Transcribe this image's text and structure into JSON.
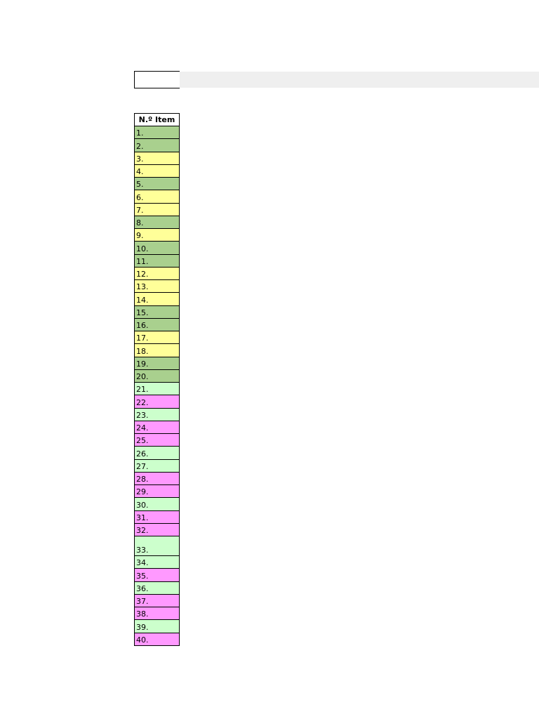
{
  "table": {
    "header": "N.º Item",
    "rows": [
      {
        "label": "1.",
        "color": "#a9d08e"
      },
      {
        "label": "2.",
        "color": "#a9d08e"
      },
      {
        "label": "3.",
        "color": "#ffff99"
      },
      {
        "label": "4.",
        "color": "#ffff99"
      },
      {
        "label": "5.",
        "color": "#a9d08e"
      },
      {
        "label": "6.",
        "color": "#ffff99"
      },
      {
        "label": "7.",
        "color": "#ffff99"
      },
      {
        "label": "8.",
        "color": "#a9d08e"
      },
      {
        "label": "9.",
        "color": "#ffff99"
      },
      {
        "label": "10.",
        "color": "#a9d08e"
      },
      {
        "label": "11.",
        "color": "#a9d08e"
      },
      {
        "label": "12.",
        "color": "#ffff99"
      },
      {
        "label": "13.",
        "color": "#ffff99"
      },
      {
        "label": "14.",
        "color": "#ffff99"
      },
      {
        "label": "15.",
        "color": "#a9d08e"
      },
      {
        "label": "16.",
        "color": "#a9d08e"
      },
      {
        "label": "17.",
        "color": "#ffff99"
      },
      {
        "label": "18.",
        "color": "#ffff99"
      },
      {
        "label": "19.",
        "color": "#a9d08e"
      },
      {
        "label": "20.",
        "color": "#a9d08e"
      },
      {
        "label": "21.",
        "color": "#ccffcc"
      },
      {
        "label": "22.",
        "color": "#ff99ff"
      },
      {
        "label": "23.",
        "color": "#ccffcc"
      },
      {
        "label": "24.",
        "color": "#ff99ff"
      },
      {
        "label": "25.",
        "color": "#ff99ff"
      },
      {
        "label": "26.",
        "color": "#ccffcc"
      },
      {
        "label": "27.",
        "color": "#ccffcc"
      },
      {
        "label": "28.",
        "color": "#ff99ff"
      },
      {
        "label": "29.",
        "color": "#ff99ff"
      },
      {
        "label": "30.",
        "color": "#ccffcc"
      },
      {
        "label": "31.",
        "color": "#ff99ff"
      },
      {
        "label": "32.",
        "color": "#ff99ff"
      },
      {
        "label": "33.",
        "color": "#ccffcc"
      },
      {
        "label": "34.",
        "color": "#ccffcc"
      },
      {
        "label": "35.",
        "color": "#ff99ff"
      },
      {
        "label": "36.",
        "color": "#ccffcc"
      },
      {
        "label": "37.",
        "color": "#ff99ff"
      },
      {
        "label": "38.",
        "color": "#ff99ff"
      },
      {
        "label": "39.",
        "color": "#ccffcc"
      },
      {
        "label": "40.",
        "color": "#ff99ff"
      }
    ]
  }
}
